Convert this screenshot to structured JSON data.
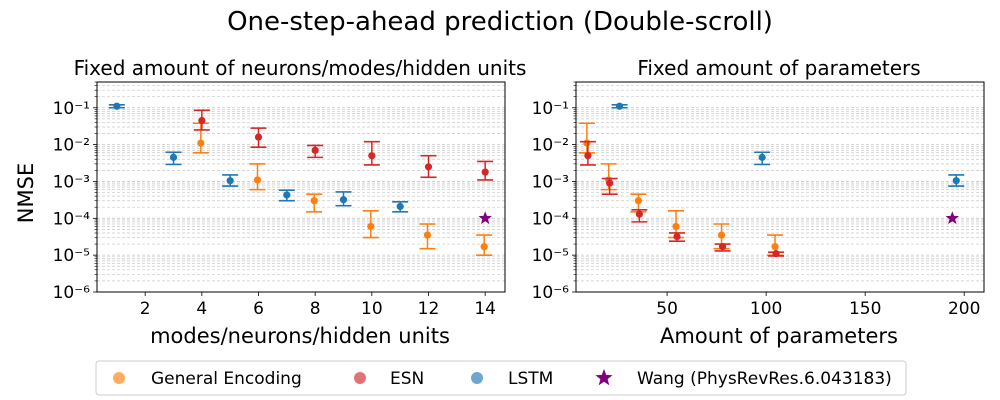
{
  "suptitle": "One-step-ahead prediction (Double-scroll)",
  "colors": {
    "general_encoding": "#ff7f0e",
    "esn": "#d62728",
    "lstm": "#1f77b4",
    "wang": "#800080",
    "grid": "#c8c8c8"
  },
  "chart_data": [
    {
      "type": "scatter",
      "title": "Fixed amount of neurons/modes/hidden units",
      "xlabel": "modes/neurons/hidden units",
      "ylabel": "NMSE",
      "xlim": [
        0.3,
        14.7
      ],
      "ylim": [
        1e-06,
        0.5
      ],
      "yscale": "log",
      "xticks": [
        2,
        4,
        6,
        8,
        10,
        12,
        14
      ],
      "yticks": [
        1e-06,
        1e-05,
        0.0001,
        0.001,
        0.01,
        0.1
      ],
      "ytick_labels": [
        "10⁻⁶",
        "10⁻⁵",
        "10⁻⁴",
        "10⁻³",
        "10⁻²",
        "10⁻¹"
      ],
      "grid": true,
      "series": [
        {
          "name": "General Encoding",
          "color": "#ff7f0e",
          "points": [
            {
              "x": 4,
              "y": 0.011,
              "lo": 0.006,
              "hi": 0.038
            },
            {
              "x": 6,
              "y": 0.0011,
              "lo": 0.0006,
              "hi": 0.003
            },
            {
              "x": 8,
              "y": 0.0003,
              "lo": 0.00015,
              "hi": 0.00045
            },
            {
              "x": 10,
              "y": 6e-05,
              "lo": 3e-05,
              "hi": 0.00016
            },
            {
              "x": 12,
              "y": 3.5e-05,
              "lo": 1.5e-05,
              "hi": 7e-05
            },
            {
              "x": 14,
              "y": 1.7e-05,
              "lo": 1e-05,
              "hi": 3.5e-05
            }
          ]
        },
        {
          "name": "ESN",
          "color": "#d62728",
          "points": [
            {
              "x": 4,
              "y": 0.045,
              "lo": 0.025,
              "hi": 0.085
            },
            {
              "x": 6,
              "y": 0.016,
              "lo": 0.0085,
              "hi": 0.028
            },
            {
              "x": 8,
              "y": 0.007,
              "lo": 0.0045,
              "hi": 0.0095
            },
            {
              "x": 10,
              "y": 0.005,
              "lo": 0.0028,
              "hi": 0.012
            },
            {
              "x": 12,
              "y": 0.0025,
              "lo": 0.0013,
              "hi": 0.005
            },
            {
              "x": 14,
              "y": 0.0018,
              "lo": 0.0011,
              "hi": 0.0035
            }
          ]
        },
        {
          "name": "LSTM",
          "color": "#1f77b4",
          "points": [
            {
              "x": 1,
              "y": 0.11,
              "lo": 0.1,
              "hi": 0.12
            },
            {
              "x": 3,
              "y": 0.0045,
              "lo": 0.0029,
              "hi": 0.0062
            },
            {
              "x": 5,
              "y": 0.00105,
              "lo": 0.00075,
              "hi": 0.0015
            },
            {
              "x": 7,
              "y": 0.00043,
              "lo": 0.0003,
              "hi": 0.00058
            },
            {
              "x": 9,
              "y": 0.00032,
              "lo": 0.00022,
              "hi": 0.00052
            },
            {
              "x": 11,
              "y": 0.00021,
              "lo": 0.00015,
              "hi": 0.00028
            }
          ]
        },
        {
          "name": "Wang (PhysRevRes.6.043183)",
          "color": "#800080",
          "marker": "star",
          "points": [
            {
              "x": 14,
              "y": 0.0001
            }
          ]
        }
      ]
    },
    {
      "type": "scatter",
      "title": "Fixed amount of parameters",
      "xlabel": "Amount of parameters",
      "ylabel": "",
      "xlim": [
        4,
        210
      ],
      "ylim": [
        1e-06,
        0.5
      ],
      "yscale": "log",
      "xticks": [
        50,
        100,
        150,
        200
      ],
      "yticks": [
        1e-06,
        1e-05,
        0.0001,
        0.001,
        0.01,
        0.1
      ],
      "ytick_labels": [
        "10⁻⁶",
        "10⁻⁵",
        "10⁻⁴",
        "10⁻³",
        "10⁻²",
        "10⁻¹"
      ],
      "grid": true,
      "series": [
        {
          "name": "General Encoding",
          "color": "#ff7f0e",
          "points": [
            {
              "x": 10,
              "y": 0.011,
              "lo": 0.006,
              "hi": 0.038
            },
            {
              "x": 21,
              "y": 0.0011,
              "lo": 0.0006,
              "hi": 0.003
            },
            {
              "x": 36,
              "y": 0.0003,
              "lo": 0.00015,
              "hi": 0.00045
            },
            {
              "x": 55,
              "y": 6e-05,
              "lo": 3e-05,
              "hi": 0.00016
            },
            {
              "x": 78,
              "y": 3.5e-05,
              "lo": 1.5e-05,
              "hi": 7e-05
            },
            {
              "x": 105,
              "y": 1.7e-05,
              "lo": 1e-05,
              "hi": 3.5e-05
            }
          ]
        },
        {
          "name": "ESN",
          "color": "#d62728",
          "points": [
            {
              "x": 10,
              "y": 0.005,
              "lo": 0.0028,
              "hi": 0.012
            },
            {
              "x": 21,
              "y": 0.0009,
              "lo": 0.00045,
              "hi": 0.0012
            },
            {
              "x": 36,
              "y": 0.00013,
              "lo": 8e-05,
              "hi": 0.00017
            },
            {
              "x": 55,
              "y": 3.2e-05,
              "lo": 2.4e-05,
              "hi": 4e-05
            },
            {
              "x": 78,
              "y": 1.7e-05,
              "lo": 1.3e-05,
              "hi": 2e-05
            },
            {
              "x": 105,
              "y": 1.1e-05,
              "lo": 9.5e-06,
              "hi": 1.2e-05
            }
          ]
        },
        {
          "name": "LSTM",
          "color": "#1f77b4",
          "points": [
            {
              "x": 26,
              "y": 0.11,
              "lo": 0.1,
              "hi": 0.12
            },
            {
              "x": 98,
              "y": 0.0045,
              "lo": 0.0029,
              "hi": 0.0062
            },
            {
              "x": 196,
              "y": 0.00105,
              "lo": 0.00075,
              "hi": 0.0015
            }
          ]
        },
        {
          "name": "Wang (PhysRevRes.6.043183)",
          "color": "#800080",
          "marker": "star",
          "points": [
            {
              "x": 194,
              "y": 0.0001
            }
          ]
        }
      ]
    }
  ],
  "legend": {
    "placement": "bottom-center",
    "items": [
      {
        "label": "General Encoding",
        "marker": "dot",
        "color": "#ff7f0e"
      },
      {
        "label": "ESN",
        "marker": "dot",
        "color": "#d62728"
      },
      {
        "label": "LSTM",
        "marker": "dot",
        "color": "#1f77b4"
      },
      {
        "label": "Wang (PhysRevRes.6.043183)",
        "marker": "star",
        "color": "#800080"
      }
    ]
  }
}
